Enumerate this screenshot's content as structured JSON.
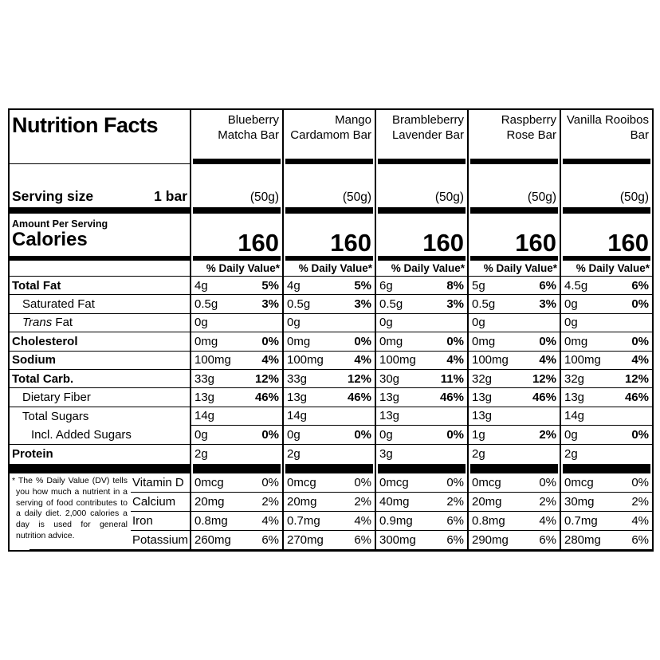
{
  "title": "Nutrition Facts",
  "serving": {
    "label": "Serving size",
    "value": "1 bar"
  },
  "amount_per_serving_label": "Amount Per Serving",
  "calories_label": "Calories",
  "daily_value_header": "% Daily Value*",
  "footnote": "* The % Daily Value (DV) tells you how much a nutrient in a serving of food contributes to a daily diet. 2,000 calories a day is used for general nutrition advice.",
  "nutrient_rows": [
    {
      "label": "Total Fat",
      "bold": true,
      "indent": 0
    },
    {
      "label": "Saturated Fat",
      "bold": false,
      "indent": 1
    },
    {
      "label": "Trans Fat",
      "italic_prefix": "Trans",
      "label_rest": "Fat",
      "bold": false,
      "indent": 1
    },
    {
      "label": "Cholesterol",
      "bold": true,
      "indent": 0
    },
    {
      "label": "Sodium",
      "bold": true,
      "indent": 0
    },
    {
      "label": "Total Carb.",
      "bold": true,
      "indent": 0
    },
    {
      "label": "Dietary Fiber",
      "bold": false,
      "indent": 1
    },
    {
      "label": "Total Sugars",
      "bold": false,
      "indent": 1,
      "separator_indented": true
    },
    {
      "label": "Incl. Added Sugars",
      "bold": false,
      "indent": 2
    },
    {
      "label": "Protein",
      "bold": true,
      "indent": 0,
      "no_separator": true
    }
  ],
  "micronutrient_rows": [
    "Vitamin D",
    "Calcium",
    "Iron",
    "Potassium"
  ],
  "products": [
    {
      "name": "Blueberry Matcha Bar",
      "serving_weight": "(50g)",
      "calories": "160",
      "nutrients": [
        {
          "amount": "4g",
          "dv": "5%"
        },
        {
          "amount": "0.5g",
          "dv": "3%"
        },
        {
          "amount": "0g",
          "dv": ""
        },
        {
          "amount": "0mg",
          "dv": "0%"
        },
        {
          "amount": "100mg",
          "dv": "4%"
        },
        {
          "amount": "33g",
          "dv": "12%"
        },
        {
          "amount": "13g",
          "dv": "46%"
        },
        {
          "amount": "14g",
          "dv": ""
        },
        {
          "amount": "0g",
          "dv": "0%"
        },
        {
          "amount": "2g",
          "dv": ""
        }
      ],
      "micros": [
        {
          "amount": "0mcg",
          "dv": "0%"
        },
        {
          "amount": "20mg",
          "dv": "2%"
        },
        {
          "amount": "0.8mg",
          "dv": "4%"
        },
        {
          "amount": "260mg",
          "dv": "6%"
        }
      ]
    },
    {
      "name": "Mango Cardamom Bar",
      "serving_weight": "(50g)",
      "calories": "160",
      "nutrients": [
        {
          "amount": "4g",
          "dv": "5%"
        },
        {
          "amount": "0.5g",
          "dv": "3%"
        },
        {
          "amount": "0g",
          "dv": ""
        },
        {
          "amount": "0mg",
          "dv": "0%"
        },
        {
          "amount": "100mg",
          "dv": "4%"
        },
        {
          "amount": "33g",
          "dv": "12%"
        },
        {
          "amount": "13g",
          "dv": "46%"
        },
        {
          "amount": "14g",
          "dv": ""
        },
        {
          "amount": "0g",
          "dv": "0%"
        },
        {
          "amount": "2g",
          "dv": ""
        }
      ],
      "micros": [
        {
          "amount": "0mcg",
          "dv": "0%"
        },
        {
          "amount": "20mg",
          "dv": "2%"
        },
        {
          "amount": "0.7mg",
          "dv": "4%"
        },
        {
          "amount": "270mg",
          "dv": "6%"
        }
      ]
    },
    {
      "name": "Brambleberry Lavender Bar",
      "serving_weight": "(50g)",
      "calories": "160",
      "nutrients": [
        {
          "amount": "6g",
          "dv": "8%"
        },
        {
          "amount": "0.5g",
          "dv": "3%"
        },
        {
          "amount": "0g",
          "dv": ""
        },
        {
          "amount": "0mg",
          "dv": "0%"
        },
        {
          "amount": "100mg",
          "dv": "4%"
        },
        {
          "amount": "30g",
          "dv": "11%"
        },
        {
          "amount": "13g",
          "dv": "46%"
        },
        {
          "amount": "13g",
          "dv": ""
        },
        {
          "amount": "0g",
          "dv": "0%"
        },
        {
          "amount": "3g",
          "dv": ""
        }
      ],
      "micros": [
        {
          "amount": "0mcg",
          "dv": "0%"
        },
        {
          "amount": "40mg",
          "dv": "2%"
        },
        {
          "amount": "0.9mg",
          "dv": "6%"
        },
        {
          "amount": "300mg",
          "dv": "6%"
        }
      ]
    },
    {
      "name": "Raspberry Rose Bar",
      "serving_weight": "(50g)",
      "calories": "160",
      "nutrients": [
        {
          "amount": "5g",
          "dv": "6%"
        },
        {
          "amount": "0.5g",
          "dv": "3%"
        },
        {
          "amount": "0g",
          "dv": ""
        },
        {
          "amount": "0mg",
          "dv": "0%"
        },
        {
          "amount": "100mg",
          "dv": "4%"
        },
        {
          "amount": "32g",
          "dv": "12%"
        },
        {
          "amount": "13g",
          "dv": "46%"
        },
        {
          "amount": "13g",
          "dv": ""
        },
        {
          "amount": "1g",
          "dv": "2%"
        },
        {
          "amount": "2g",
          "dv": ""
        }
      ],
      "micros": [
        {
          "amount": "0mcg",
          "dv": "0%"
        },
        {
          "amount": "20mg",
          "dv": "2%"
        },
        {
          "amount": "0.8mg",
          "dv": "4%"
        },
        {
          "amount": "290mg",
          "dv": "6%"
        }
      ]
    },
    {
      "name": "Vanilla Rooibos Bar",
      "serving_weight": "(50g)",
      "calories": "160",
      "nutrients": [
        {
          "amount": "4.5g",
          "dv": "6%"
        },
        {
          "amount": "0g",
          "dv": "0%"
        },
        {
          "amount": "0g",
          "dv": ""
        },
        {
          "amount": "0mg",
          "dv": "0%"
        },
        {
          "amount": "100mg",
          "dv": "4%"
        },
        {
          "amount": "32g",
          "dv": "12%"
        },
        {
          "amount": "13g",
          "dv": "46%"
        },
        {
          "amount": "14g",
          "dv": ""
        },
        {
          "amount": "0g",
          "dv": "0%"
        },
        {
          "amount": "2g",
          "dv": ""
        }
      ],
      "micros": [
        {
          "amount": "0mcg",
          "dv": "0%"
        },
        {
          "amount": "30mg",
          "dv": "2%"
        },
        {
          "amount": "0.7mg",
          "dv": "4%"
        },
        {
          "amount": "280mg",
          "dv": "6%"
        }
      ]
    }
  ],
  "colors": {
    "ink": "#000000",
    "paper": "#ffffff"
  }
}
